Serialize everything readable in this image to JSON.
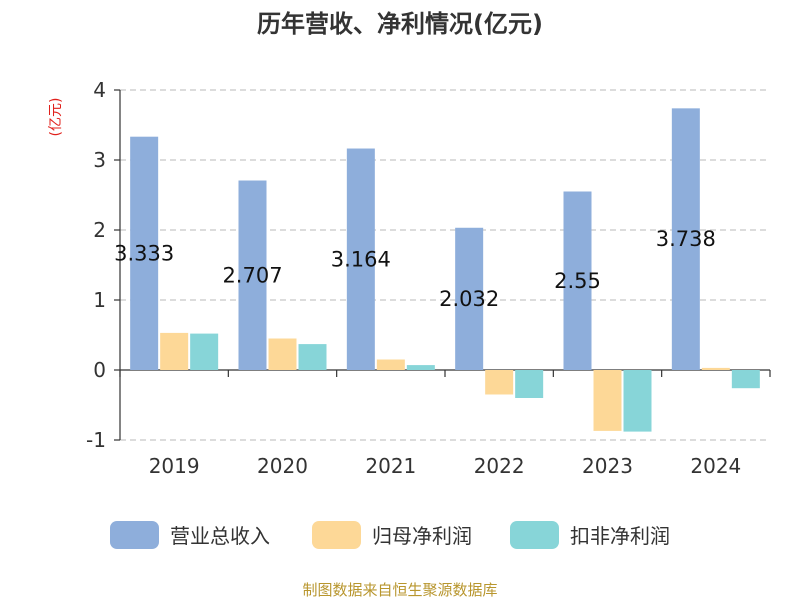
{
  "title": "历年营收、净利情况(亿元)",
  "unit_label": "(亿元)",
  "source": "制图数据来自恒生聚源数据库",
  "chart_data": {
    "type": "bar",
    "title": "历年营收、净利情况(亿元)",
    "xlabel": "",
    "ylabel": "(亿元)",
    "categories": [
      "2019",
      "2020",
      "2021",
      "2022",
      "2023",
      "2024"
    ],
    "ylim": [
      -1,
      4
    ],
    "yticks": [
      -1,
      0,
      1,
      2,
      3,
      4
    ],
    "grid": true,
    "legend_position": "bottom",
    "series": [
      {
        "name": "营业总收入",
        "color": "#8eaedb",
        "values": [
          3.333,
          2.707,
          3.164,
          2.032,
          2.55,
          3.738
        ],
        "labels": [
          "3.333",
          "2.707",
          "3.164",
          "2.032",
          "2.55",
          "3.738"
        ]
      },
      {
        "name": "归母净利润",
        "color": "#fdd897",
        "values": [
          0.53,
          0.45,
          0.15,
          -0.35,
          -0.87,
          0.03
        ]
      },
      {
        "name": "扣非净利润",
        "color": "#87d5d8",
        "values": [
          0.52,
          0.37,
          0.07,
          -0.4,
          -0.88,
          -0.26
        ]
      }
    ]
  }
}
